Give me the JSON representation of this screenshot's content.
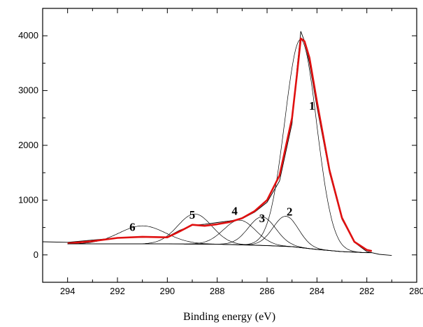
{
  "chart_data": {
    "type": "line",
    "title": "",
    "xlabel": "Binding energy (eV)",
    "ylabel": "",
    "xlim": [
      295,
      280
    ],
    "ylim": [
      -500,
      4500
    ],
    "x_axis_reversed": true,
    "grid": false,
    "x_ticks": [
      294,
      292,
      290,
      288,
      286,
      284,
      282,
      280
    ],
    "y_ticks": [
      0,
      1000,
      2000,
      3000,
      4000
    ],
    "colors": {
      "envelope": "#e01010",
      "raw": "#000000",
      "components": "#000000",
      "background": "#000000"
    },
    "series": [
      {
        "role": "raw",
        "x": [
          295.0,
          294.0,
          293.0,
          292.0,
          291.0,
          290.0,
          289.5,
          289.0,
          288.5,
          288.0,
          287.5,
          287.0,
          286.5,
          286.0,
          285.5,
          285.0,
          284.8,
          284.65,
          284.5,
          284.3,
          284.0,
          283.5,
          283.0,
          282.5,
          282.0,
          281.5,
          281.0
        ],
        "y": [
          240,
          230,
          270,
          310,
          320,
          330,
          450,
          540,
          560,
          590,
          620,
          660,
          780,
          960,
          1350,
          2400,
          3400,
          4080,
          3900,
          3500,
          2700,
          1500,
          650,
          230,
          60,
          10,
          -10
        ]
      },
      {
        "role": "envelope",
        "x": [
          294.0,
          293.0,
          292.0,
          291.0,
          290.0,
          289.5,
          289.0,
          288.5,
          288.0,
          287.5,
          287.0,
          286.5,
          286.0,
          285.5,
          285.0,
          284.8,
          284.65,
          284.5,
          284.3,
          284.0,
          283.5,
          283.0,
          282.5,
          282.0,
          281.8
        ],
        "y": [
          210,
          250,
          310,
          330,
          320,
          430,
          550,
          530,
          560,
          600,
          670,
          800,
          1000,
          1450,
          2500,
          3300,
          3950,
          3900,
          3600,
          2800,
          1550,
          680,
          240,
          90,
          70
        ]
      },
      {
        "role": "background",
        "x": [
          294.0,
          292.0,
          290.0,
          288.0,
          286.0,
          285.0,
          284.0,
          283.0,
          282.0,
          281.8
        ],
        "y": [
          200,
          200,
          200,
          195,
          170,
          150,
          100,
          60,
          40,
          40
        ]
      }
    ],
    "components": [
      {
        "label": "1",
        "center": 284.65,
        "height": 3800,
        "fwhm": 1.5,
        "label_x": 284.2,
        "label_y": 2650
      },
      {
        "label": "2",
        "center": 285.25,
        "height": 550,
        "fwhm": 1.2,
        "label_x": 285.1,
        "label_y": 720
      },
      {
        "label": "3",
        "center": 286.2,
        "height": 520,
        "fwhm": 1.3,
        "label_x": 286.2,
        "label_y": 600
      },
      {
        "label": "4",
        "center": 287.1,
        "height": 450,
        "fwhm": 1.5,
        "label_x": 287.3,
        "label_y": 730
      },
      {
        "label": "5",
        "center": 288.9,
        "height": 550,
        "fwhm": 1.6,
        "label_x": 289.0,
        "label_y": 660
      },
      {
        "label": "6",
        "center": 291.0,
        "height": 330,
        "fwhm": 2.2,
        "label_x": 291.4,
        "label_y": 440
      }
    ]
  }
}
